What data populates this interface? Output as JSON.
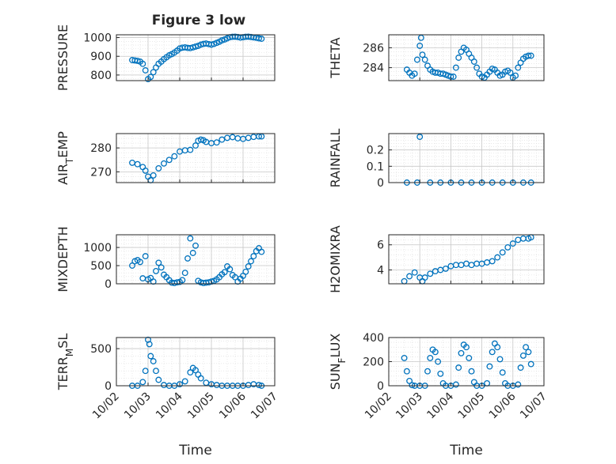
{
  "figure": {
    "title": "Figure 3 low",
    "marker_color": "#0072BD",
    "axis_color": "#262626",
    "grid_color": "#dcdcdc",
    "xtick_labels": [
      "10/02",
      "10/03",
      "10/04",
      "10/05",
      "10/06",
      "10/07"
    ],
    "xlabel": "Time"
  },
  "chart_data": [
    {
      "type": "scatter",
      "panel": "top-left",
      "ylabel": "PRESSURE",
      "ylim": [
        770,
        1015
      ],
      "yticks": [
        800,
        900,
        1000
      ],
      "xlim": [
        "10/02",
        "10/07"
      ],
      "grid": true,
      "x": [
        "10/02 12:00",
        "10/02 14:00",
        "10/02 16:00",
        "10/02 18:00",
        "10/02 20:00",
        "10/02 22:00",
        "10/03 00:00",
        "10/03 02:00",
        "10/03 04:00",
        "10/03 06:00",
        "10/03 08:00",
        "10/03 10:00",
        "10/03 12:00",
        "10/03 14:00",
        "10/03 16:00",
        "10/03 18:00",
        "10/03 20:00",
        "10/03 22:00",
        "10/04 00:00",
        "10/04 02:00",
        "10/04 04:00",
        "10/04 06:00",
        "10/04 08:00",
        "10/04 10:00",
        "10/04 12:00",
        "10/04 14:00",
        "10/04 16:00",
        "10/04 18:00",
        "10/04 20:00",
        "10/04 22:00",
        "10/05 00:00",
        "10/05 02:00",
        "10/05 04:00",
        "10/05 06:00",
        "10/05 08:00",
        "10/05 10:00",
        "10/05 12:00",
        "10/05 14:00",
        "10/05 16:00",
        "10/05 18:00",
        "10/05 20:00",
        "10/05 22:00",
        "10/06 00:00",
        "10/06 02:00",
        "10/06 04:00",
        "10/06 06:00",
        "10/06 08:00",
        "10/06 10:00",
        "10/06 12:00",
        "10/06 14:00"
      ],
      "y": [
        880,
        878,
        876,
        872,
        860,
        825,
        778,
        790,
        815,
        840,
        860,
        872,
        885,
        895,
        905,
        912,
        920,
        930,
        942,
        946,
        948,
        945,
        944,
        948,
        952,
        956,
        962,
        966,
        968,
        965,
        962,
        966,
        972,
        978,
        985,
        990,
        996,
        1002,
        1004,
        1005,
        1003,
        1000,
        1002,
        1004,
        1005,
        1003,
        1001,
        999,
        996,
        994
      ]
    },
    {
      "type": "scatter",
      "panel": "top-right",
      "ylabel": "THETA",
      "ylim": [
        282.7,
        287.3
      ],
      "yticks": [
        284,
        286
      ],
      "xlim": [
        "10/02",
        "10/07"
      ],
      "grid": true,
      "x": [
        "10/02 14:00",
        "10/02 16:00",
        "10/02 18:00",
        "10/02 20:00",
        "10/02 22:00",
        "10/03 00:00",
        "10/03 01:00",
        "10/03 02:00",
        "10/03 04:00",
        "10/03 06:00",
        "10/03 08:00",
        "10/03 10:00",
        "10/03 12:00",
        "10/03 14:00",
        "10/03 16:00",
        "10/03 18:00",
        "10/03 20:00",
        "10/03 22:00",
        "10/04 00:00",
        "10/04 02:00",
        "10/04 04:00",
        "10/04 06:00",
        "10/04 08:00",
        "10/04 10:00",
        "10/04 12:00",
        "10/04 14:00",
        "10/04 16:00",
        "10/04 18:00",
        "10/04 20:00",
        "10/04 22:00",
        "10/05 00:00",
        "10/05 02:00",
        "10/05 04:00",
        "10/05 06:00",
        "10/05 08:00",
        "10/05 10:00",
        "10/05 12:00",
        "10/05 14:00",
        "10/05 16:00",
        "10/05 18:00",
        "10/05 20:00",
        "10/05 22:00",
        "10/06 00:00",
        "10/06 02:00",
        "10/06 04:00",
        "10/06 06:00",
        "10/06 08:00",
        "10/06 10:00",
        "10/06 12:00",
        "10/06 14:00"
      ],
      "y": [
        283.8,
        283.5,
        283.2,
        283.4,
        284.8,
        286.2,
        287.0,
        285.3,
        284.8,
        284.2,
        283.8,
        283.6,
        283.5,
        283.5,
        283.4,
        283.4,
        283.3,
        283.2,
        283.1,
        283.1,
        284.0,
        285.0,
        285.6,
        286.0,
        285.8,
        285.4,
        285.0,
        284.6,
        284.0,
        283.4,
        283.1,
        283.0,
        283.3,
        283.6,
        283.9,
        283.8,
        283.5,
        283.2,
        283.3,
        283.6,
        283.7,
        283.5,
        283.0,
        283.2,
        284.0,
        284.5,
        284.9,
        285.1,
        285.2,
        285.2
      ]
    },
    {
      "type": "scatter",
      "panel": "second-left",
      "ylabel": "AIR_TEMP",
      "ylim": [
        265.5,
        286
      ],
      "yticks": [
        270,
        280
      ],
      "xlim": [
        "10/02",
        "10/07"
      ],
      "grid": true,
      "x": [
        "10/02 12:00",
        "10/02 16:00",
        "10/02 20:00",
        "10/02 22:00",
        "10/03 00:00",
        "10/03 02:00",
        "10/03 04:00",
        "10/03 08:00",
        "10/03 12:00",
        "10/03 16:00",
        "10/03 20:00",
        "10/04 00:00",
        "10/04 04:00",
        "10/04 08:00",
        "10/04 12:00",
        "10/04 14:00",
        "10/04 16:00",
        "10/04 18:00",
        "10/04 20:00",
        "10/05 00:00",
        "10/05 04:00",
        "10/05 08:00",
        "10/05 12:00",
        "10/05 16:00",
        "10/05 20:00",
        "10/06 00:00",
        "10/06 04:00",
        "10/06 08:00",
        "10/06 12:00",
        "10/06 14:00"
      ],
      "y": [
        273.8,
        273.2,
        272.0,
        270.5,
        268.0,
        266.5,
        268.5,
        271.5,
        273.5,
        275.0,
        276.5,
        278.5,
        279.0,
        279.2,
        281.0,
        283.0,
        283.5,
        283.2,
        282.5,
        282.0,
        282.3,
        283.5,
        284.2,
        284.5,
        284.0,
        283.8,
        284.2,
        284.6,
        284.8,
        284.8
      ]
    },
    {
      "type": "scatter",
      "panel": "second-right",
      "ylabel": "RAINFALL",
      "ylim": [
        0,
        0.3
      ],
      "yticks": [
        0,
        0.1,
        0.2
      ],
      "xlim": [
        "10/02",
        "10/07"
      ],
      "grid": true,
      "x": [
        "10/02 14:00",
        "10/02 22:00",
        "10/03 00:00",
        "10/03 08:00",
        "10/03 16:00",
        "10/04 00:00",
        "10/04 08:00",
        "10/04 16:00",
        "10/05 00:00",
        "10/05 08:00",
        "10/05 16:00",
        "10/06 00:00",
        "10/06 08:00",
        "10/06 14:00"
      ],
      "y": [
        0,
        0,
        0.28,
        0,
        0,
        0,
        0,
        0,
        0,
        0,
        0,
        0,
        0,
        0
      ]
    },
    {
      "type": "scatter",
      "panel": "third-left",
      "ylabel": "MIXDEPTH",
      "ylim": [
        0,
        1350
      ],
      "yticks": [
        0,
        500,
        1000
      ],
      "xlim": [
        "10/02",
        "10/07"
      ],
      "grid": true,
      "x": [
        "10/02 12:00",
        "10/02 14:00",
        "10/02 16:00",
        "10/02 18:00",
        "10/02 20:00",
        "10/02 22:00",
        "10/03 00:00",
        "10/03 02:00",
        "10/03 04:00",
        "10/03 06:00",
        "10/03 08:00",
        "10/03 10:00",
        "10/03 12:00",
        "10/03 14:00",
        "10/03 16:00",
        "10/03 18:00",
        "10/03 20:00",
        "10/03 22:00",
        "10/04 00:00",
        "10/04 02:00",
        "10/04 04:00",
        "10/04 06:00",
        "10/04 08:00",
        "10/04 10:00",
        "10/04 12:00",
        "10/04 14:00",
        "10/04 16:00",
        "10/04 18:00",
        "10/04 20:00",
        "10/04 22:00",
        "10/05 00:00",
        "10/05 02:00",
        "10/05 04:00",
        "10/05 06:00",
        "10/05 08:00",
        "10/05 10:00",
        "10/05 12:00",
        "10/05 14:00",
        "10/05 16:00",
        "10/05 18:00",
        "10/05 20:00",
        "10/05 22:00",
        "10/06 00:00",
        "10/06 02:00",
        "10/06 04:00",
        "10/06 06:00",
        "10/06 08:00",
        "10/06 10:00",
        "10/06 12:00",
        "10/06 14:00"
      ],
      "y": [
        500,
        620,
        650,
        600,
        150,
        760,
        120,
        160,
        60,
        350,
        580,
        450,
        250,
        180,
        100,
        30,
        20,
        40,
        50,
        100,
        300,
        700,
        1250,
        850,
        1050,
        80,
        40,
        20,
        30,
        40,
        60,
        80,
        120,
        180,
        260,
        320,
        480,
        400,
        240,
        180,
        60,
        140,
        220,
        330,
        480,
        620,
        760,
        900,
        980,
        880
      ]
    },
    {
      "type": "scatter",
      "panel": "third-right",
      "ylabel": "H2OMIXRA",
      "ylim": [
        2.9,
        6.8
      ],
      "yticks": [
        4,
        6
      ],
      "xlim": [
        "10/02",
        "10/07"
      ],
      "grid": true,
      "x": [
        "10/02 12:00",
        "10/02 16:00",
        "10/02 20:00",
        "10/03 00:00",
        "10/03 02:00",
        "10/03 04:00",
        "10/03 08:00",
        "10/03 12:00",
        "10/03 16:00",
        "10/03 20:00",
        "10/04 00:00",
        "10/04 04:00",
        "10/04 08:00",
        "10/04 12:00",
        "10/04 16:00",
        "10/04 20:00",
        "10/05 00:00",
        "10/05 04:00",
        "10/05 08:00",
        "10/05 12:00",
        "10/05 16:00",
        "10/05 20:00",
        "10/06 00:00",
        "10/06 04:00",
        "10/06 08:00",
        "10/06 12:00",
        "10/06 14:00"
      ],
      "y": [
        3.1,
        3.5,
        3.8,
        3.4,
        3.1,
        3.4,
        3.7,
        3.9,
        4.0,
        4.1,
        4.3,
        4.4,
        4.4,
        4.5,
        4.4,
        4.5,
        4.5,
        4.6,
        4.7,
        5.0,
        5.4,
        5.8,
        6.1,
        6.4,
        6.5,
        6.5,
        6.6
      ]
    },
    {
      "type": "scatter",
      "panel": "bottom-left",
      "ylabel": "TERR_MSL",
      "ylim": [
        0,
        650
      ],
      "yticks": [
        0,
        500
      ],
      "xlim": [
        "10/02",
        "10/07"
      ],
      "grid": true,
      "x": [
        "10/02 12:00",
        "10/02 16:00",
        "10/02 20:00",
        "10/02 22:00",
        "10/03 00:00",
        "10/03 01:00",
        "10/03 02:00",
        "10/03 04:00",
        "10/03 06:00",
        "10/03 08:00",
        "10/03 12:00",
        "10/03 16:00",
        "10/03 20:00",
        "10/04 00:00",
        "10/04 04:00",
        "10/04 08:00",
        "10/04 10:00",
        "10/04 12:00",
        "10/04 14:00",
        "10/04 16:00",
        "10/04 20:00",
        "10/05 00:00",
        "10/05 04:00",
        "10/05 08:00",
        "10/05 12:00",
        "10/05 16:00",
        "10/05 20:00",
        "10/06 00:00",
        "10/06 04:00",
        "10/06 08:00",
        "10/06 12:00",
        "10/06 14:00"
      ],
      "y": [
        0,
        0,
        50,
        200,
        620,
        560,
        400,
        330,
        200,
        80,
        10,
        0,
        0,
        20,
        60,
        180,
        240,
        210,
        150,
        100,
        40,
        20,
        10,
        0,
        0,
        0,
        0,
        0,
        10,
        20,
        10,
        0
      ]
    },
    {
      "type": "scatter",
      "panel": "bottom-right",
      "ylabel": "SUN_FLUX",
      "ylim": [
        0,
        400
      ],
      "yticks": [
        0,
        200,
        400
      ],
      "xlim": [
        "10/02",
        "10/07"
      ],
      "grid": true,
      "x": [
        "10/02 12:00",
        "10/02 14:00",
        "10/02 16:00",
        "10/02 18:00",
        "10/02 20:00",
        "10/03 00:00",
        "10/03 04:00",
        "10/03 06:00",
        "10/03 08:00",
        "10/03 10:00",
        "10/03 12:00",
        "10/03 14:00",
        "10/03 16:00",
        "10/03 18:00",
        "10/03 20:00",
        "10/04 00:00",
        "10/04 04:00",
        "10/04 06:00",
        "10/04 08:00",
        "10/04 10:00",
        "10/04 12:00",
        "10/04 14:00",
        "10/04 16:00",
        "10/04 18:00",
        "10/04 20:00",
        "10/05 00:00",
        "10/05 04:00",
        "10/05 06:00",
        "10/05 08:00",
        "10/05 10:00",
        "10/05 12:00",
        "10/05 14:00",
        "10/05 16:00",
        "10/05 18:00",
        "10/05 20:00",
        "10/06 00:00",
        "10/06 04:00",
        "10/06 06:00",
        "10/06 08:00",
        "10/06 10:00",
        "10/06 12:00",
        "10/06 14:00"
      ],
      "y": [
        230,
        120,
        40,
        5,
        0,
        0,
        0,
        120,
        230,
        300,
        280,
        200,
        100,
        20,
        0,
        0,
        10,
        150,
        270,
        340,
        320,
        230,
        120,
        30,
        0,
        0,
        20,
        160,
        280,
        350,
        320,
        220,
        110,
        20,
        0,
        0,
        10,
        150,
        250,
        320,
        280,
        180
      ]
    }
  ]
}
